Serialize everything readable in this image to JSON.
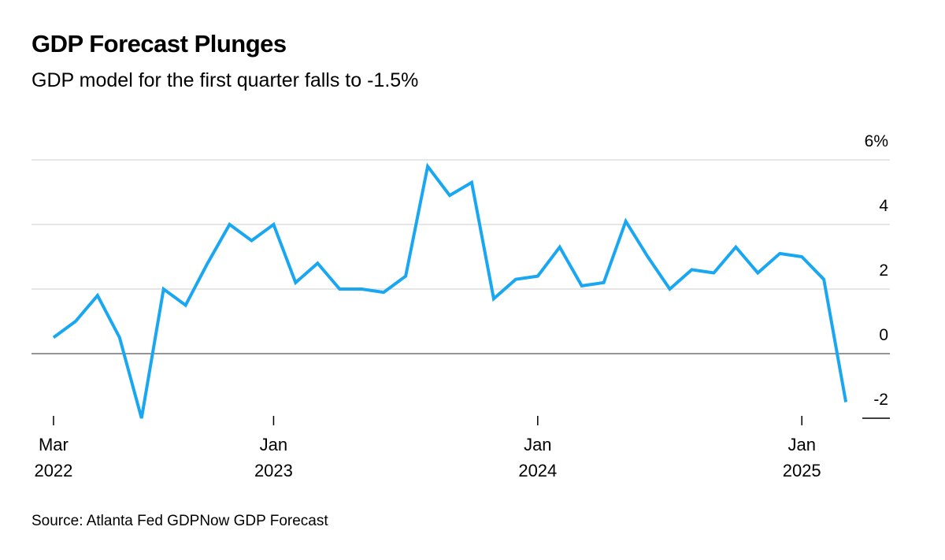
{
  "chart_data": {
    "type": "line",
    "title": "GDP Forecast Plunges",
    "subtitle": "GDP model for the first quarter falls to -1.5%",
    "source": "Source: Atlanta Fed GDPNow GDP Forecast",
    "x": [
      "2022-03",
      "2022-04",
      "2022-05",
      "2022-06",
      "2022-07",
      "2022-08",
      "2022-09",
      "2022-10",
      "2022-11",
      "2022-12",
      "2023-01",
      "2023-02",
      "2023-03",
      "2023-04",
      "2023-05",
      "2023-06",
      "2023-07",
      "2023-08",
      "2023-09",
      "2023-10",
      "2023-11",
      "2023-12",
      "2024-01",
      "2024-02",
      "2024-03",
      "2024-04",
      "2024-05",
      "2024-06",
      "2024-07",
      "2024-08",
      "2024-09",
      "2024-10",
      "2024-11",
      "2024-12",
      "2025-01",
      "2025-02",
      "2025-03"
    ],
    "series": [
      {
        "name": "GDPNow",
        "color": "#1aa7f2",
        "values": [
          0.5,
          1.0,
          1.8,
          0.5,
          -2.0,
          2.0,
          1.5,
          2.8,
          4.0,
          3.5,
          4.0,
          2.2,
          2.8,
          2.0,
          2.0,
          1.9,
          2.4,
          5.8,
          4.9,
          5.3,
          1.7,
          2.3,
          2.4,
          3.3,
          2.1,
          2.2,
          4.1,
          3.0,
          2.0,
          2.6,
          2.5,
          3.3,
          2.5,
          3.1,
          3.0,
          2.3,
          -1.5
        ]
      }
    ],
    "xlim": [
      "2022-02",
      "2025-05"
    ],
    "xticks": [
      {
        "value": "2022-03",
        "label": "Mar 2022"
      },
      {
        "value": "2023-01",
        "label": "Jan 2023"
      },
      {
        "value": "2024-01",
        "label": "Jan 2024"
      },
      {
        "value": "2025-01",
        "label": "Jan 2025"
      }
    ],
    "ylim": [
      -2,
      6
    ],
    "yticks": [
      {
        "value": 6,
        "label": "6%"
      },
      4,
      2,
      0,
      -2
    ],
    "grid": true
  }
}
